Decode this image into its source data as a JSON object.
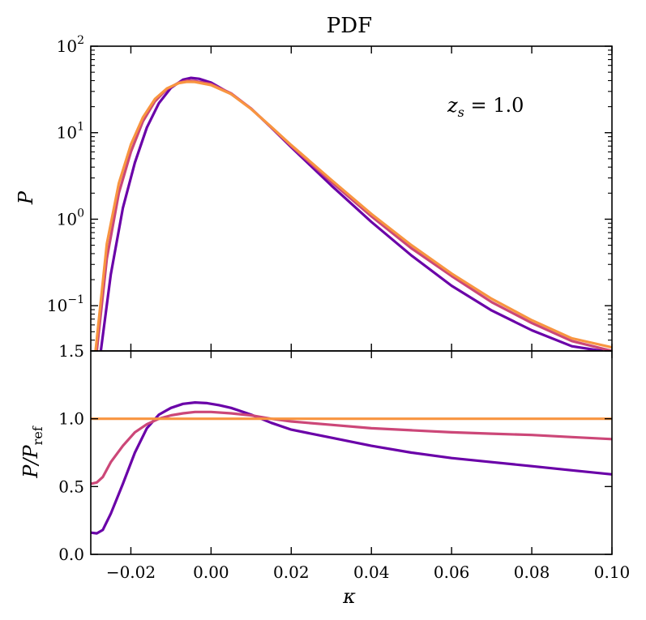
{
  "chart_data": [
    {
      "type": "line",
      "title": "PDF",
      "ylabel": "P",
      "xlabel": "",
      "yscale": "log",
      "xlim": [
        -0.03,
        0.1
      ],
      "ylim": [
        0.03,
        100
      ],
      "yticks": [
        {
          "value": 100,
          "base": "10",
          "exp": "2"
        },
        {
          "value": 10,
          "base": "10",
          "exp": "1"
        },
        {
          "value": 1,
          "base": "10",
          "exp": "0"
        },
        {
          "value": 0.1,
          "base": "10",
          "exp": "−1"
        }
      ],
      "annotation": {
        "text": "z",
        "sub": "s",
        "rest": " = 1.0"
      },
      "legend": "none",
      "grid": false,
      "series": [
        {
          "color": "#6a00a8",
          "x": [
            -0.0275,
            -0.025,
            -0.022,
            -0.019,
            -0.016,
            -0.013,
            -0.01,
            -0.007,
            -0.005,
            -0.003,
            0.0,
            0.005,
            0.01,
            0.015,
            0.02,
            0.03,
            0.04,
            0.05,
            0.06,
            0.07,
            0.08,
            0.09,
            0.0975
          ],
          "y": [
            0.03,
            0.23,
            1.35,
            4.5,
            11.5,
            22.0,
            33.0,
            41.0,
            43.0,
            42.0,
            38.0,
            28.0,
            19.0,
            11.5,
            6.8,
            2.45,
            0.93,
            0.38,
            0.17,
            0.088,
            0.052,
            0.034,
            0.03
          ]
        },
        {
          "color": "#cc4778",
          "x": [
            -0.0285,
            -0.026,
            -0.023,
            -0.02,
            -0.017,
            -0.014,
            -0.011,
            -0.008,
            -0.006,
            -0.004,
            0.0,
            0.005,
            0.01,
            0.015,
            0.02,
            0.03,
            0.04,
            0.05,
            0.06,
            0.07,
            0.08,
            0.09,
            0.1
          ],
          "y": [
            0.03,
            0.35,
            2.0,
            6.0,
            13.5,
            23.0,
            32.0,
            38.0,
            40.0,
            39.5,
            36.5,
            28.5,
            19.0,
            11.6,
            7.0,
            2.7,
            1.08,
            0.46,
            0.22,
            0.11,
            0.063,
            0.039,
            0.03
          ]
        },
        {
          "color": "#f89540",
          "x": [
            -0.0288,
            -0.026,
            -0.023,
            -0.02,
            -0.017,
            -0.014,
            -0.011,
            -0.008,
            -0.006,
            -0.004,
            0.0,
            0.005,
            0.01,
            0.015,
            0.02,
            0.03,
            0.04,
            0.05,
            0.06,
            0.07,
            0.08,
            0.09,
            0.1
          ],
          "y": [
            0.03,
            0.52,
            2.6,
            7.3,
            15.0,
            24.5,
            32.5,
            37.5,
            38.8,
            38.5,
            35.5,
            28.0,
            18.8,
            11.7,
            7.2,
            2.85,
            1.15,
            0.5,
            0.235,
            0.12,
            0.068,
            0.042,
            0.033
          ]
        }
      ]
    },
    {
      "type": "line",
      "title": "",
      "xlabel": "κ",
      "ylabel": {
        "main": "P/P",
        "sub": "ref"
      },
      "xlim": [
        -0.03,
        0.1
      ],
      "ylim": [
        0.0,
        1.5
      ],
      "xticks": [
        "−0.02",
        "0.00",
        "0.02",
        "0.04",
        "0.06",
        "0.08",
        "0.10"
      ],
      "xtick_values": [
        -0.02,
        0.0,
        0.02,
        0.04,
        0.06,
        0.08,
        0.1
      ],
      "yticks": [
        "0.0",
        "0.5",
        "1.0",
        "1.5"
      ],
      "ytick_values": [
        0.0,
        0.5,
        1.0,
        1.5
      ],
      "legend": "none",
      "grid": false,
      "series": [
        {
          "color": "#6a00a8",
          "x": [
            -0.03,
            -0.0285,
            -0.027,
            -0.025,
            -0.022,
            -0.019,
            -0.016,
            -0.013,
            -0.01,
            -0.007,
            -0.004,
            -0.001,
            0.002,
            0.005,
            0.01,
            0.015,
            0.02,
            0.03,
            0.04,
            0.05,
            0.06,
            0.07,
            0.08,
            0.09,
            0.1
          ],
          "y": [
            0.16,
            0.155,
            0.18,
            0.3,
            0.52,
            0.75,
            0.93,
            1.03,
            1.08,
            1.11,
            1.12,
            1.115,
            1.1,
            1.08,
            1.03,
            0.97,
            0.92,
            0.86,
            0.8,
            0.75,
            0.71,
            0.68,
            0.65,
            0.62,
            0.59
          ]
        },
        {
          "color": "#cc4778",
          "x": [
            -0.03,
            -0.0285,
            -0.027,
            -0.025,
            -0.022,
            -0.019,
            -0.016,
            -0.013,
            -0.01,
            -0.007,
            -0.004,
            0.0,
            0.005,
            0.01,
            0.015,
            0.02,
            0.03,
            0.04,
            0.05,
            0.06,
            0.07,
            0.08,
            0.09,
            0.1
          ],
          "y": [
            0.52,
            0.53,
            0.57,
            0.68,
            0.8,
            0.9,
            0.96,
            1.0,
            1.025,
            1.04,
            1.05,
            1.05,
            1.04,
            1.025,
            1.0,
            0.98,
            0.955,
            0.93,
            0.915,
            0.9,
            0.89,
            0.88,
            0.865,
            0.85
          ]
        },
        {
          "color": "#f89540",
          "x": [
            -0.03,
            0.1
          ],
          "y": [
            1.0,
            1.0
          ]
        }
      ]
    }
  ]
}
